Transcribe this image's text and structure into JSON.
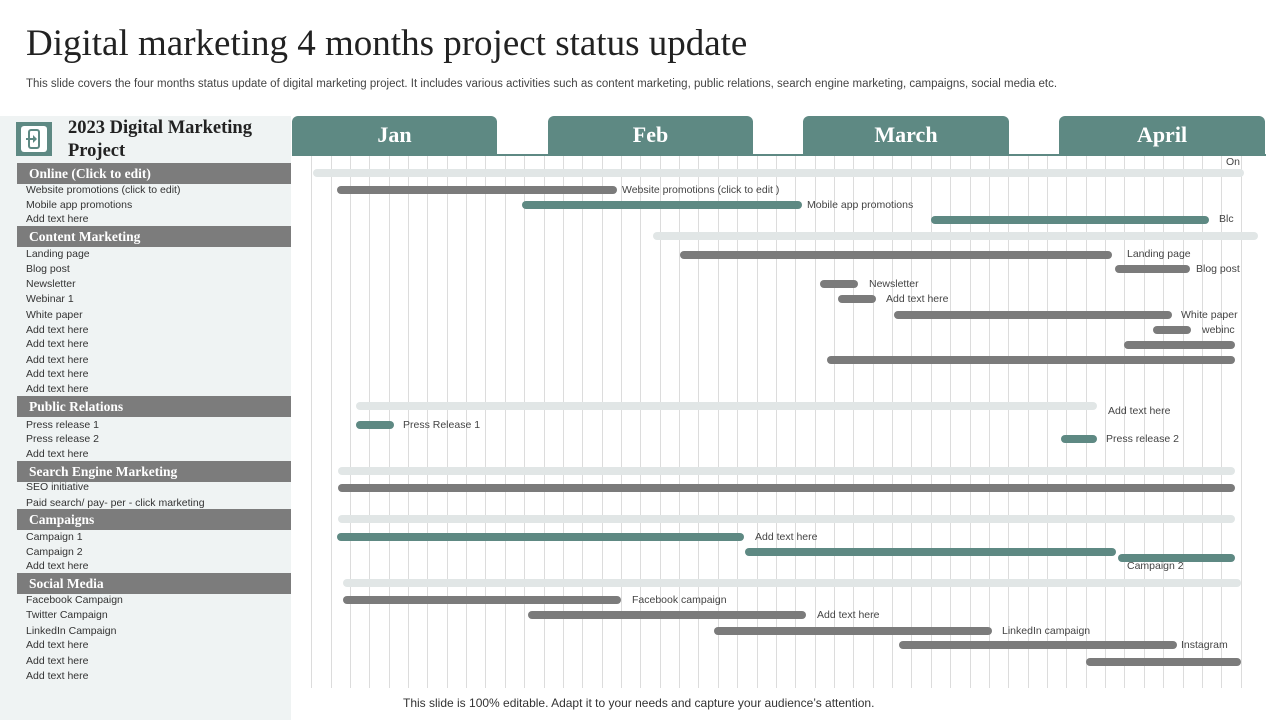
{
  "title": "Digital marketing 4 months project status update",
  "subtitle": "This slide covers the four months status update of digital marketing project. It includes various activities such as content marketing, public relations, search engine marketing, campaigns, social media etc.",
  "footer": "This slide is 100% editable. Adapt it to your needs and capture your audience’s attention.",
  "colors": {
    "accent": "#5e8983",
    "category": "#7c7c7c",
    "bar_gray": "#7b7b7b",
    "bar_light": "#e1e6e6"
  },
  "sidebar": {
    "logo_icon": "mobile-device-icon",
    "project_title": "2023 Digital Marketing Project",
    "categories": [
      {
        "label": "Online (Click to edit)",
        "items": [
          "Website promotions (click to edit)",
          "Mobile app promotions",
          "Add text here"
        ]
      },
      {
        "label": "Content  Marketing",
        "items": [
          "Landing page",
          "Blog post",
          "Newsletter",
          "Webinar 1",
          "White paper",
          "Add text here",
          "Add text here",
          "Add text here",
          "Add text here",
          "Add text here"
        ]
      },
      {
        "label": "Public Relations",
        "items": [
          "Press release 1",
          "Press release 2",
          "Add text here"
        ]
      },
      {
        "label": "Search Engine Marketing",
        "items": [
          "SEO  initiative",
          "Paid search/ pay- per - click marketing"
        ]
      },
      {
        "label": "Campaigns",
        "items": [
          "Campaign  1",
          "Campaign  2",
          "Add text here"
        ]
      },
      {
        "label": "Social Media",
        "items": [
          "Facebook Campaign",
          "Twitter Campaign",
          "LinkedIn  Campaign",
          "Add text here",
          "Add text here",
          "Add text here"
        ]
      }
    ]
  },
  "months": [
    "Jan",
    "Feb",
    "March",
    "April"
  ],
  "bar_labels": {
    "on": "On",
    "website": "Website promotions (click to edit )",
    "mobile": "Mobile app promotions",
    "blc": "Blc",
    "landing": "Landing page",
    "blog": "Blog post",
    "newsletter": "Newsletter",
    "add1": "Add text here",
    "whitepaper": "White paper",
    "webinc": "webinc",
    "add2": "Add text here",
    "press1": "Press Release  1",
    "press2": "Press release 2",
    "add3": "Add text here",
    "campaign2": "Campaign  2",
    "facebook": "Facebook campaign",
    "add4": "Add text here",
    "linkedin": "LinkedIn  campaign",
    "instagram": "Instagram"
  }
}
